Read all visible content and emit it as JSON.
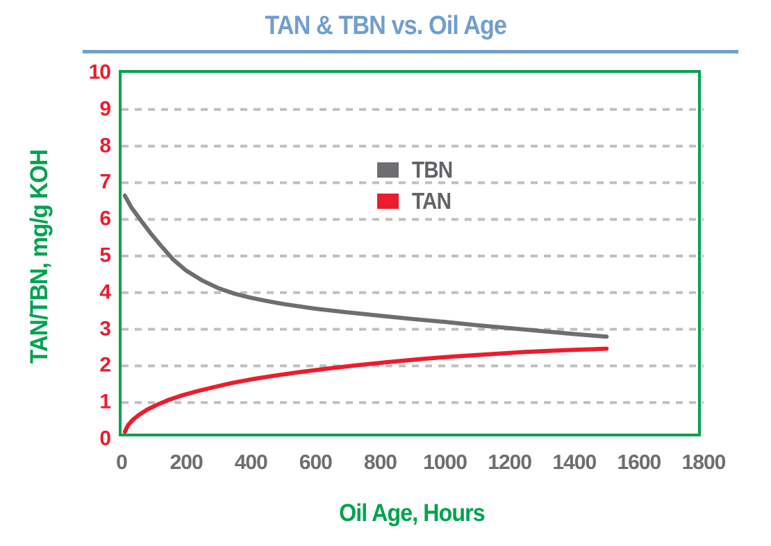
{
  "title": "TAN & TBN vs. Oil Age",
  "colors": {
    "title_blue": "#6F9FCF",
    "rule_blue": "#6F9FCF",
    "axis_green": "#00A24F",
    "y_tick_red": "#EC1C2D",
    "x_tick_gray": "#6D6E71",
    "gridline_gray": "#BDBFC1",
    "legend_text": "#626366"
  },
  "chart_data": {
    "type": "line",
    "title": "TAN & TBN vs. Oil Age",
    "xlabel": "Oil Age, Hours",
    "ylabel": "TAN/TBN, mg/g KOH",
    "xlim": [
      0,
      1800
    ],
    "ylim": [
      0,
      10
    ],
    "x_ticks": [
      0,
      200,
      400,
      600,
      800,
      1000,
      1200,
      1400,
      1600,
      1800
    ],
    "y_ticks": [
      0,
      1,
      2,
      3,
      4,
      5,
      6,
      7,
      8,
      9,
      10
    ],
    "grid": "horizontal dashed gridlines at y=1..9",
    "legend_position": "inside top-center",
    "legend": [
      "TBN",
      "TAN"
    ],
    "series": [
      {
        "name": "TBN",
        "color": "#6D6E71",
        "points": [
          [
            10,
            6.65
          ],
          [
            30,
            6.33
          ],
          [
            60,
            5.97
          ],
          [
            90,
            5.62
          ],
          [
            120,
            5.3
          ],
          [
            160,
            4.9
          ],
          [
            200,
            4.6
          ],
          [
            250,
            4.33
          ],
          [
            300,
            4.12
          ],
          [
            350,
            3.97
          ],
          [
            400,
            3.86
          ],
          [
            450,
            3.77
          ],
          [
            500,
            3.69
          ],
          [
            600,
            3.56
          ],
          [
            700,
            3.46
          ],
          [
            800,
            3.37
          ],
          [
            900,
            3.28
          ],
          [
            1000,
            3.2
          ],
          [
            1100,
            3.11
          ],
          [
            1200,
            3.03
          ],
          [
            1300,
            2.95
          ],
          [
            1400,
            2.87
          ],
          [
            1500,
            2.8
          ]
        ]
      },
      {
        "name": "TAN",
        "color": "#EC1C2D",
        "points": [
          [
            10,
            0.2
          ],
          [
            20,
            0.38
          ],
          [
            35,
            0.53
          ],
          [
            55,
            0.67
          ],
          [
            80,
            0.81
          ],
          [
            110,
            0.94
          ],
          [
            145,
            1.07
          ],
          [
            185,
            1.19
          ],
          [
            230,
            1.3
          ],
          [
            280,
            1.41
          ],
          [
            340,
            1.53
          ],
          [
            400,
            1.63
          ],
          [
            470,
            1.73
          ],
          [
            550,
            1.83
          ],
          [
            640,
            1.93
          ],
          [
            730,
            2.02
          ],
          [
            830,
            2.11
          ],
          [
            930,
            2.19
          ],
          [
            1030,
            2.26
          ],
          [
            1140,
            2.32
          ],
          [
            1250,
            2.38
          ],
          [
            1370,
            2.43
          ],
          [
            1500,
            2.47
          ]
        ]
      }
    ]
  }
}
